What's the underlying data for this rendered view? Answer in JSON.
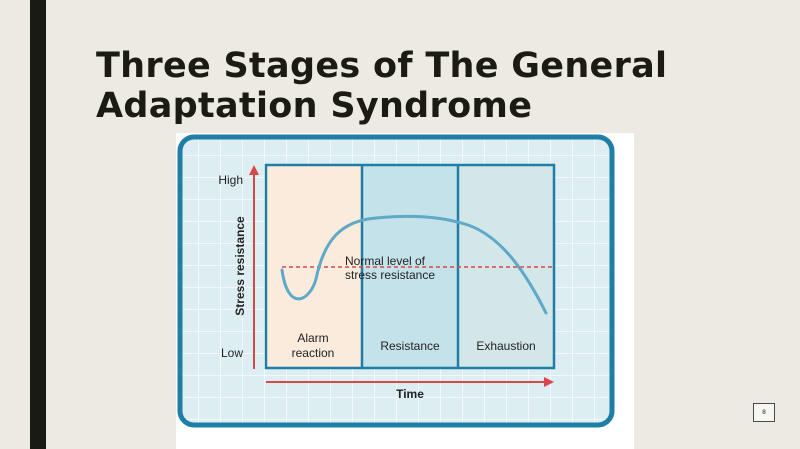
{
  "slide": {
    "title_line1": "Three Stages of The General",
    "title_line2": "Adaptation Syndrome",
    "slide_number": "8"
  },
  "diagram": {
    "y_axis_label": "Stress resistance",
    "y_high_label": "High",
    "y_low_label": "Low",
    "x_axis_label": "Time",
    "normal_level_line1": "Normal level of",
    "normal_level_line2": "stress resistance",
    "stages": [
      {
        "line1": "Alarm",
        "line2": "reaction"
      },
      {
        "label": "Resistance"
      },
      {
        "label": "Exhaustion"
      }
    ],
    "colors": {
      "frame": "#1f7ea7",
      "grid_bg": "#dceef1",
      "alarm_fill": "#fbebdc",
      "resistance_fill": "#c4e2ea",
      "exhaustion_fill": "#d3e7e8",
      "curve": "#5fa9c8",
      "axis_arrow": "#d9474c",
      "normal_line": "#d9474c"
    }
  }
}
